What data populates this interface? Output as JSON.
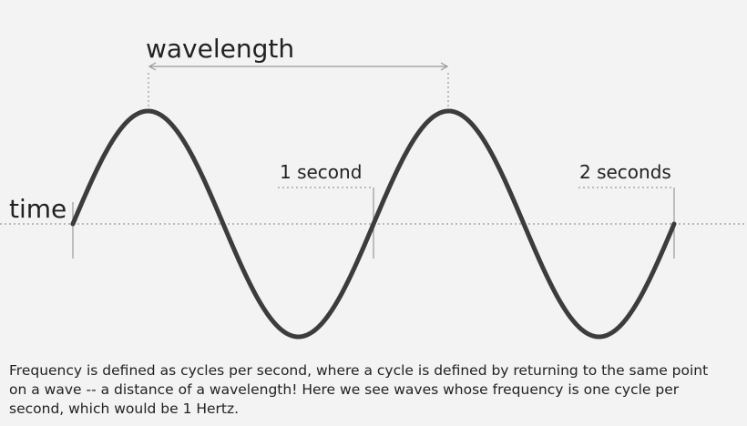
{
  "labels": {
    "wavelength": "wavelength",
    "time": "time",
    "one_second": "1 second",
    "two_seconds": "2 seconds"
  },
  "caption": {
    "lines": [
      "Frequency is defined as cycles per second, where a cycle is defined by returning to the same point",
      "on a wave -- a distance of a wavelength! Here we see waves whose frequency is one cycle per",
      "second, which would be 1 Hertz."
    ]
  }
}
